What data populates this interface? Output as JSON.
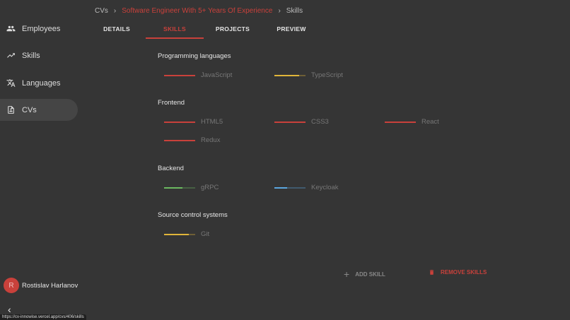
{
  "sidebar": {
    "items": [
      {
        "label": "Employees",
        "icon": "people-icon"
      },
      {
        "label": "Skills",
        "icon": "trending-up-icon"
      },
      {
        "label": "Languages",
        "icon": "translate-icon"
      },
      {
        "label": "CVs",
        "icon": "document-icon",
        "active": true
      }
    ],
    "user": {
      "initial": "R",
      "name": "Rostislav Harlanov"
    }
  },
  "breadcrumb": [
    "CVs",
    "Software Engineer With 5+ Years Of Experience",
    "Skills"
  ],
  "tabs": [
    "DETAILS",
    "SKILLS",
    "PROJECTS",
    "PREVIEW"
  ],
  "active_tab": "SKILLS",
  "colors": {
    "accent": "#c9413b",
    "expert": "#c9413b",
    "advanced": "#e0b53a",
    "competent": "#6bb860",
    "intermediate": "#5aa7e0"
  },
  "categories": [
    {
      "name": "Programming languages",
      "skills": [
        {
          "name": "JavaScript",
          "level": 100,
          "color": "#c9413b"
        },
        {
          "name": "TypeScript",
          "level": 80,
          "color": "#e0b53a"
        }
      ]
    },
    {
      "name": "Frontend",
      "skills": [
        {
          "name": "HTML5",
          "level": 100,
          "color": "#c9413b"
        },
        {
          "name": "CSS3",
          "level": 100,
          "color": "#c9413b"
        },
        {
          "name": "React",
          "level": 100,
          "color": "#c9413b"
        },
        {
          "name": "Redux",
          "level": 100,
          "color": "#c9413b"
        }
      ]
    },
    {
      "name": "Backend",
      "skills": [
        {
          "name": "gRPC",
          "level": 60,
          "color": "#6bb860"
        },
        {
          "name": "Keycloak",
          "level": 40,
          "color": "#5aa7e0"
        }
      ]
    },
    {
      "name": "Source control systems",
      "skills": [
        {
          "name": "Git",
          "level": 80,
          "color": "#e0b53a"
        }
      ]
    }
  ],
  "actions": {
    "add": "ADD SKILL",
    "remove": "REMOVE SKILLS"
  },
  "status_url": "https://cv-innowise.vercel.app/cvs/406/skills"
}
